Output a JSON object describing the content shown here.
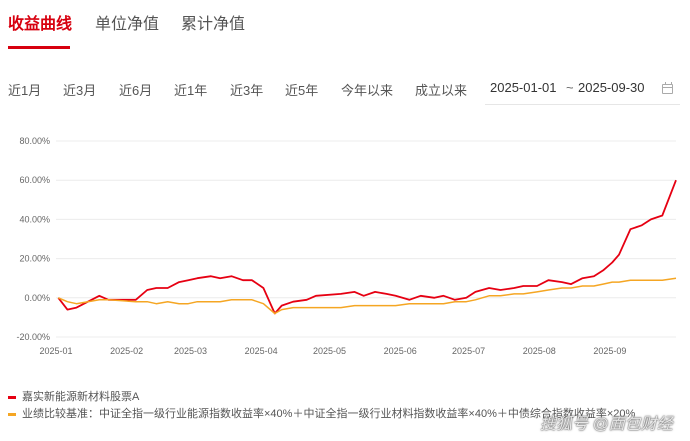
{
  "tabs": [
    {
      "label": "收益曲线",
      "active": true
    },
    {
      "label": "单位净值",
      "active": false
    },
    {
      "label": "累计净值",
      "active": false
    }
  ],
  "ranges": [
    "近1月",
    "近3月",
    "近6月",
    "近1年",
    "近3年",
    "近5年",
    "今年以来",
    "成立以来"
  ],
  "date_range": {
    "start": "2025-01-01",
    "separator": "~",
    "end": "2025-09-30",
    "icon": "calendar-icon"
  },
  "legend": [
    {
      "label": "嘉实新能源新材料股票A",
      "color": "#e60012"
    },
    {
      "label": "业绩比较基准：中证全指一级行业能源指数收益率×40%＋中证全指一级行业材料指数收益率×40%＋中债综合指数收益率×20%",
      "color": "#f5a623"
    }
  ],
  "watermark": "搜狐号 @面包财经",
  "chart_data": {
    "type": "line",
    "ylim": [
      -20,
      80
    ],
    "yticks": [
      "-20.00%",
      "0.00%",
      "20.00%",
      "40.00%",
      "60.00%",
      "80.00%"
    ],
    "xticks": [
      "2025-01",
      "2025-02",
      "2025-03",
      "2025-04",
      "2025-05",
      "2025-06",
      "2025-07",
      "2025-08",
      "2025-09"
    ],
    "grid": true,
    "x": [
      "2025-01-02",
      "2025-01-06",
      "2025-01-10",
      "2025-01-15",
      "2025-01-20",
      "2025-01-24",
      "2025-02-05",
      "2025-02-10",
      "2025-02-14",
      "2025-02-19",
      "2025-02-24",
      "2025-02-28",
      "2025-03-04",
      "2025-03-10",
      "2025-03-14",
      "2025-03-19",
      "2025-03-24",
      "2025-03-28",
      "2025-04-02",
      "2025-04-07",
      "2025-04-10",
      "2025-04-15",
      "2025-04-21",
      "2025-04-25",
      "2025-05-06",
      "2025-05-12",
      "2025-05-16",
      "2025-05-21",
      "2025-05-26",
      "2025-05-30",
      "2025-06-05",
      "2025-06-10",
      "2025-06-16",
      "2025-06-20",
      "2025-06-25",
      "2025-06-30",
      "2025-07-04",
      "2025-07-10",
      "2025-07-15",
      "2025-07-21",
      "2025-07-25",
      "2025-07-31",
      "2025-08-05",
      "2025-08-11",
      "2025-08-15",
      "2025-08-20",
      "2025-08-25",
      "2025-08-29",
      "2025-09-02",
      "2025-09-05",
      "2025-09-10",
      "2025-09-15",
      "2025-09-19",
      "2025-09-24",
      "2025-09-30"
    ],
    "series": [
      {
        "name": "嘉实新能源新材料股票A",
        "color": "#e60012",
        "values": [
          0,
          -6,
          -5,
          -2,
          1,
          -1,
          -1,
          4,
          5,
          5,
          8,
          9,
          10,
          11,
          10,
          11,
          9,
          9,
          5,
          -8,
          -4,
          -2,
          -1,
          1,
          2,
          3,
          1,
          3,
          2,
          1,
          -1,
          1,
          0,
          1,
          -1,
          0,
          3,
          5,
          4,
          5,
          6,
          6,
          9,
          8,
          7,
          10,
          11,
          14,
          18,
          22,
          35,
          37,
          40,
          42,
          60
        ]
      },
      {
        "name": "业绩比较基准：中证全指一级行业能源指数收益率×40%＋中证全指一级行业材料指数收益率×40%＋中债综合指数收益率×20%",
        "color": "#f5a623",
        "values": [
          0,
          -2,
          -3,
          -2,
          -1,
          -1,
          -2,
          -2,
          -3,
          -2,
          -3,
          -3,
          -2,
          -2,
          -2,
          -1,
          -1,
          -1,
          -3,
          -8,
          -6,
          -5,
          -5,
          -5,
          -5,
          -4,
          -4,
          -4,
          -4,
          -4,
          -3,
          -3,
          -3,
          -3,
          -2,
          -2,
          -1,
          1,
          1,
          2,
          2,
          3,
          4,
          5,
          5,
          6,
          6,
          7,
          8,
          8,
          9,
          9,
          9,
          9,
          10
        ]
      }
    ]
  }
}
